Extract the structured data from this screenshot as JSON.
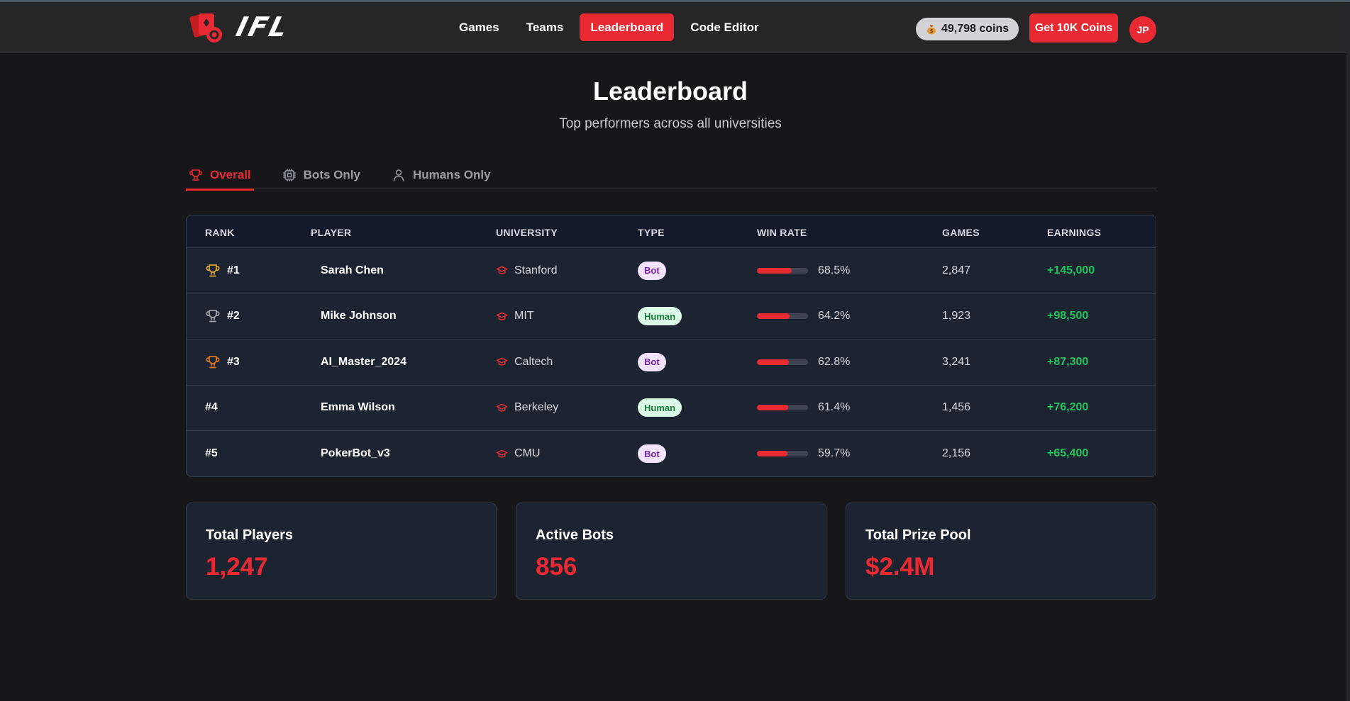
{
  "header": {
    "brand": "IFL",
    "nav": [
      {
        "label": "Games",
        "active": false
      },
      {
        "label": "Teams",
        "active": false
      },
      {
        "label": "Leaderboard",
        "active": true
      },
      {
        "label": "Code Editor",
        "active": false
      }
    ],
    "coins": "49,798 coins",
    "get_coins_label": "Get 10K Coins",
    "avatar_initials": "JP"
  },
  "page": {
    "title": "Leaderboard",
    "subtitle": "Top performers across all universities"
  },
  "tabs": [
    {
      "label": "Overall",
      "icon": "trophy-icon",
      "active": true
    },
    {
      "label": "Bots Only",
      "icon": "cpu-icon",
      "active": false
    },
    {
      "label": "Humans Only",
      "icon": "user-icon",
      "active": false
    }
  ],
  "table": {
    "columns": [
      "RANK",
      "PLAYER",
      "UNIVERSITY",
      "TYPE",
      "WIN RATE",
      "GAMES",
      "EARNINGS"
    ],
    "rows": [
      {
        "rank": "#1",
        "trophy": "gold",
        "player": "Sarah Chen",
        "university": "Stanford",
        "type": "Bot",
        "win_rate": "68.5%",
        "win_value": 68.5,
        "games": "2,847",
        "earnings": "+145,000"
      },
      {
        "rank": "#2",
        "trophy": "silver",
        "player": "Mike Johnson",
        "university": "MIT",
        "type": "Human",
        "win_rate": "64.2%",
        "win_value": 64.2,
        "games": "1,923",
        "earnings": "+98,500"
      },
      {
        "rank": "#3",
        "trophy": "bronze",
        "player": "AI_Master_2024",
        "university": "Caltech",
        "type": "Bot",
        "win_rate": "62.8%",
        "win_value": 62.8,
        "games": "3,241",
        "earnings": "+87,300"
      },
      {
        "rank": "#4",
        "trophy": "",
        "player": "Emma Wilson",
        "university": "Berkeley",
        "type": "Human",
        "win_rate": "61.4%",
        "win_value": 61.4,
        "games": "1,456",
        "earnings": "+76,200"
      },
      {
        "rank": "#5",
        "trophy": "",
        "player": "PokerBot_v3",
        "university": "CMU",
        "type": "Bot",
        "win_rate": "59.7%",
        "win_value": 59.7,
        "games": "2,156",
        "earnings": "+65,400"
      }
    ]
  },
  "stats": [
    {
      "label": "Total Players",
      "value": "1,247"
    },
    {
      "label": "Active Bots",
      "value": "856"
    },
    {
      "label": "Total Prize Pool",
      "value": "$2.4M"
    }
  ],
  "colors": {
    "accent": "#ea2a33",
    "gold": "#e0a82e",
    "silver": "#a3a3aa",
    "bronze": "#d97a1e",
    "earnings": "#22c55e"
  }
}
